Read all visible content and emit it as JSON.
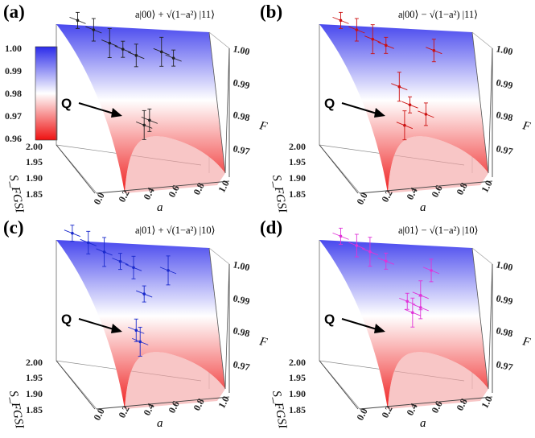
{
  "chart_data": {
    "type": "surface3d",
    "colorbar": {
      "ticks": [
        "1.00",
        "0.99",
        "0.98",
        "0.97",
        "0.96"
      ],
      "range": [
        0.96,
        1.0
      ],
      "colors": {
        "high": "#2b2bea",
        "mid": "#ffffff",
        "low": "#ee1111"
      }
    },
    "annotation_label": "Q",
    "panels": [
      {
        "label": "(a)",
        "state": "a|00⟩ + √(1−a²) |11⟩",
        "data_color": "#222222",
        "xlabel": "a",
        "ylabel": "S_FGSI",
        "zlabel": "F",
        "xticks": [
          "0.0",
          "0.2",
          "0.4",
          "0.6",
          "0.8",
          "1.0"
        ],
        "yticks": [
          "1.85",
          "1.90",
          "1.95",
          "2.00"
        ],
        "zticks": [
          "1.00",
          "0.99",
          "0.98",
          "0.97"
        ],
        "points": [
          {
            "a": 0.1,
            "S": 1.97,
            "F": 0.999
          },
          {
            "a": 0.18,
            "S": 1.95,
            "F": 0.998
          },
          {
            "a": 0.26,
            "S": 1.93,
            "F": 0.996
          },
          {
            "a": 0.34,
            "S": 1.92,
            "F": 0.995
          },
          {
            "a": 0.42,
            "S": 1.91,
            "F": 0.994
          },
          {
            "a": 0.55,
            "S": 1.88,
            "F": 0.997
          },
          {
            "a": 0.62,
            "S": 1.87,
            "F": 0.996
          },
          {
            "a": 0.5,
            "S": 1.9,
            "F": 0.978
          },
          {
            "a": 0.48,
            "S": 1.91,
            "F": 0.976
          }
        ]
      },
      {
        "label": "(b)",
        "state": "a|00⟩ − √(1−a²) |11⟩",
        "data_color": "#cc1111",
        "xlabel": "a",
        "ylabel": "S_FGSI",
        "zlabel": "F",
        "xticks": [
          "0.0",
          "0.2",
          "0.4",
          "0.6",
          "0.8",
          "1.0"
        ],
        "yticks": [
          "1.85",
          "1.90",
          "1.95",
          "2.00"
        ],
        "zticks": [
          "1.00",
          "0.99",
          "0.98",
          "0.97"
        ],
        "points": [
          {
            "a": 0.1,
            "S": 1.97,
            "F": 0.999
          },
          {
            "a": 0.18,
            "S": 1.95,
            "F": 0.998
          },
          {
            "a": 0.26,
            "S": 1.93,
            "F": 0.997
          },
          {
            "a": 0.34,
            "S": 1.92,
            "F": 0.996
          },
          {
            "a": 0.6,
            "S": 1.87,
            "F": 0.998
          },
          {
            "a": 0.42,
            "S": 1.91,
            "F": 0.986
          },
          {
            "a": 0.48,
            "S": 1.9,
            "F": 0.982
          },
          {
            "a": 0.56,
            "S": 1.88,
            "F": 0.981
          },
          {
            "a": 0.46,
            "S": 1.91,
            "F": 0.976
          }
        ]
      },
      {
        "label": "(c)",
        "state": "a|01⟩ + √(1−a²) |10⟩",
        "data_color": "#1a2acc",
        "xlabel": "a",
        "ylabel": "S_FGSI",
        "zlabel": "F",
        "xticks": [
          "0.0",
          "0.2",
          "0.4",
          "0.6",
          "0.8",
          "1.0"
        ],
        "yticks": [
          "1.85",
          "1.90",
          "1.95",
          "2.00"
        ],
        "zticks": [
          "1.00",
          "0.99",
          "0.98",
          "0.97"
        ],
        "points": [
          {
            "a": 0.08,
            "S": 1.98,
            "F": 0.999
          },
          {
            "a": 0.16,
            "S": 1.96,
            "F": 0.998
          },
          {
            "a": 0.24,
            "S": 1.94,
            "F": 0.997
          },
          {
            "a": 0.32,
            "S": 1.92,
            "F": 0.996
          },
          {
            "a": 0.4,
            "S": 1.91,
            "F": 0.995
          },
          {
            "a": 0.58,
            "S": 1.87,
            "F": 0.997
          },
          {
            "a": 0.48,
            "S": 1.91,
            "F": 0.988
          },
          {
            "a": 0.44,
            "S": 1.92,
            "F": 0.978
          },
          {
            "a": 0.47,
            "S": 1.92,
            "F": 0.975
          }
        ]
      },
      {
        "label": "(d)",
        "state": "a|01⟩ − √(1−a²) |10⟩",
        "data_color": "#e033d8",
        "xlabel": "a",
        "ylabel": "S_FGSI",
        "zlabel": "F",
        "xticks": [
          "0.0",
          "0.2",
          "0.4",
          "0.6",
          "0.8",
          "1.0"
        ],
        "yticks": [
          "1.85",
          "1.90",
          "1.95",
          "2.00"
        ],
        "zticks": [
          "1.00",
          "0.99",
          "0.98",
          "0.97"
        ],
        "points": [
          {
            "a": 0.1,
            "S": 1.97,
            "F": 0.999
          },
          {
            "a": 0.18,
            "S": 1.95,
            "F": 0.998
          },
          {
            "a": 0.26,
            "S": 1.94,
            "F": 0.997
          },
          {
            "a": 0.34,
            "S": 1.92,
            "F": 0.996
          },
          {
            "a": 0.58,
            "S": 1.87,
            "F": 0.997
          },
          {
            "a": 0.52,
            "S": 1.88,
            "F": 0.99
          },
          {
            "a": 0.46,
            "S": 1.9,
            "F": 0.987
          },
          {
            "a": 0.54,
            "S": 1.89,
            "F": 0.986
          },
          {
            "a": 0.5,
            "S": 1.9,
            "F": 0.984
          }
        ]
      }
    ]
  }
}
